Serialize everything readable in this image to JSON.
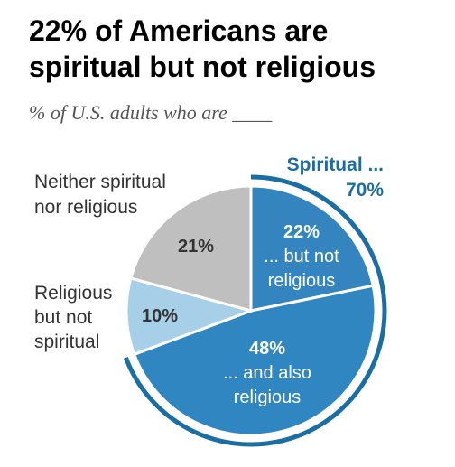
{
  "title": "22% of Americans are spiritual but not religious",
  "subtitle": "% of U.S. adults who are ____",
  "colors": {
    "spiritual_not_religious": "#3384bf",
    "spiritual_and_religious": "#2f86c1",
    "religious_not_spiritual": "#a8cfe8",
    "neither": "#bfbfbf",
    "bracket": "#1a6ea4"
  },
  "chart_data": {
    "type": "pie",
    "title": "22% of Americans are spiritual but not religious",
    "subtitle": "% of U.S. adults who are ____",
    "slices": [
      {
        "key": "spiritual_not_religious",
        "value": 22,
        "value_label": "22%",
        "label_lines": [
          "... but not",
          "religious"
        ]
      },
      {
        "key": "spiritual_and_religious",
        "value": 48,
        "value_label": "48%",
        "label_lines": [
          "... and also",
          "religious"
        ]
      },
      {
        "key": "religious_not_spiritual",
        "value": 10,
        "value_label": "10%",
        "label_lines": [
          "Religious",
          "but not",
          "spiritual"
        ]
      },
      {
        "key": "neither",
        "value": 21,
        "value_label": "21%",
        "label_lines": [
          "Neither spiritual",
          "nor religious"
        ]
      }
    ],
    "group": {
      "label_lines": [
        "Spiritual ...",
        "70%"
      ],
      "members": [
        "spiritual_not_religious",
        "spiritual_and_religious"
      ]
    }
  }
}
